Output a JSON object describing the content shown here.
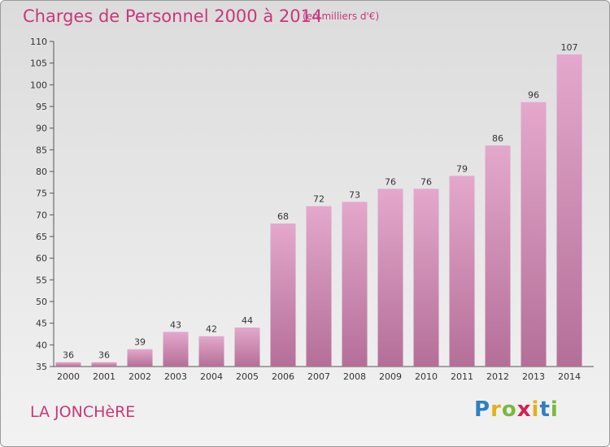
{
  "chart_data": {
    "type": "bar",
    "title": "Charges de Personnel 2000 à 2014",
    "subtitle": "(en milliers d'€)",
    "categories": [
      "2000",
      "2001",
      "2002",
      "2003",
      "2004",
      "2005",
      "2006",
      "2007",
      "2008",
      "2009",
      "2010",
      "2011",
      "2012",
      "2013",
      "2014"
    ],
    "values": [
      36,
      36,
      39,
      43,
      42,
      44,
      68,
      72,
      73,
      76,
      76,
      79,
      86,
      96,
      107
    ],
    "ylim": [
      35,
      110
    ],
    "yticks": [
      35,
      40,
      45,
      50,
      55,
      60,
      65,
      70,
      75,
      80,
      85,
      90,
      95,
      100,
      105,
      110
    ],
    "grid": false,
    "bar_color": "#d98fba"
  },
  "place_name": "LA JONCHèRE",
  "logo": {
    "letters": [
      "P",
      "r",
      "o",
      "x",
      "i",
      "t",
      "i"
    ],
    "colors": [
      "#2f7fc1",
      "#e0b21a",
      "#7ab83a",
      "#d6204f",
      "#e0b21a",
      "#2f7fc1",
      "#7ab83a"
    ]
  }
}
